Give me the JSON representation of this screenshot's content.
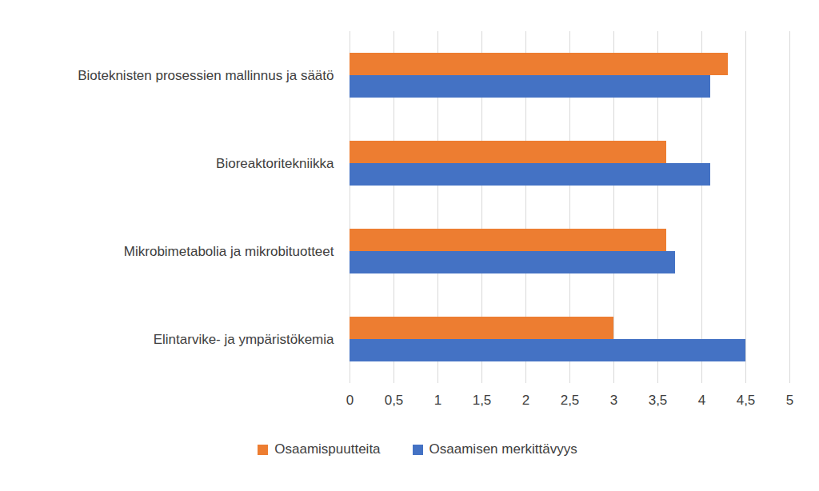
{
  "chart_data": {
    "type": "bar",
    "orientation": "horizontal",
    "categories": [
      "Bioteknisten prosessien mallinnus ja säätö",
      "Bioreaktoritekniikka",
      "Mikrobimetabolia ja mikrobituotteet",
      "Elintarvike- ja ympäristökemia"
    ],
    "series": [
      {
        "name": "Osaamispuutteita",
        "color": "#ed7d31",
        "values": [
          4.3,
          3.6,
          3.6,
          3.0
        ]
      },
      {
        "name": "Osaamisen merkittävyys",
        "color": "#4472c4",
        "values": [
          4.1,
          4.1,
          3.7,
          4.5
        ]
      }
    ],
    "xlim": [
      0,
      5
    ],
    "xticks": [
      0,
      {
        "value": 0.5,
        "label": "0,5"
      },
      1,
      {
        "value": 1.5,
        "label": "1,5"
      },
      2,
      {
        "value": 2.5,
        "label": "2,5"
      },
      3,
      {
        "value": 3.5,
        "label": "3,5"
      },
      4,
      {
        "value": 4.5,
        "label": "4,5"
      },
      5
    ],
    "grid": true,
    "legend": "bottom"
  }
}
